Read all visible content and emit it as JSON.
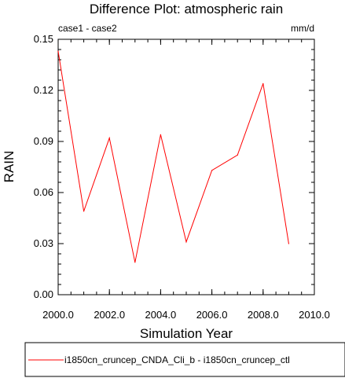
{
  "chart_data": {
    "type": "line",
    "title": "Difference Plot: atmospheric rain",
    "subtitle_left": "case1 - case2",
    "subtitle_right": "mm/d",
    "xlabel": "Simulation Year",
    "ylabel": "RAIN",
    "xlim": [
      2000,
      2010
    ],
    "ylim": [
      0,
      0.15
    ],
    "x_ticks": [
      2000,
      2002,
      2004,
      2006,
      2008,
      2010
    ],
    "x_tick_labels": [
      "2000.0",
      "2002.0",
      "2004.0",
      "2006.0",
      "2008.0",
      "2010.0"
    ],
    "y_ticks": [
      0,
      0.03,
      0.06,
      0.09,
      0.12,
      0.15
    ],
    "y_tick_labels": [
      "0.00",
      "0.03",
      "0.06",
      "0.09",
      "0.12",
      "0.15"
    ],
    "grid": false,
    "legend_position": "bottom",
    "series": [
      {
        "name": "i1850cn_cruncep_CNDA_Cli_b - i1850cn_cruncep_ctl",
        "color": "#ff0000",
        "x": [
          2000,
          2001,
          2002,
          2003,
          2004,
          2005,
          2006,
          2007,
          2008,
          2009
        ],
        "y": [
          0.143,
          0.049,
          0.092,
          0.019,
          0.094,
          0.031,
          0.073,
          0.082,
          0.124,
          0.03
        ]
      }
    ]
  }
}
